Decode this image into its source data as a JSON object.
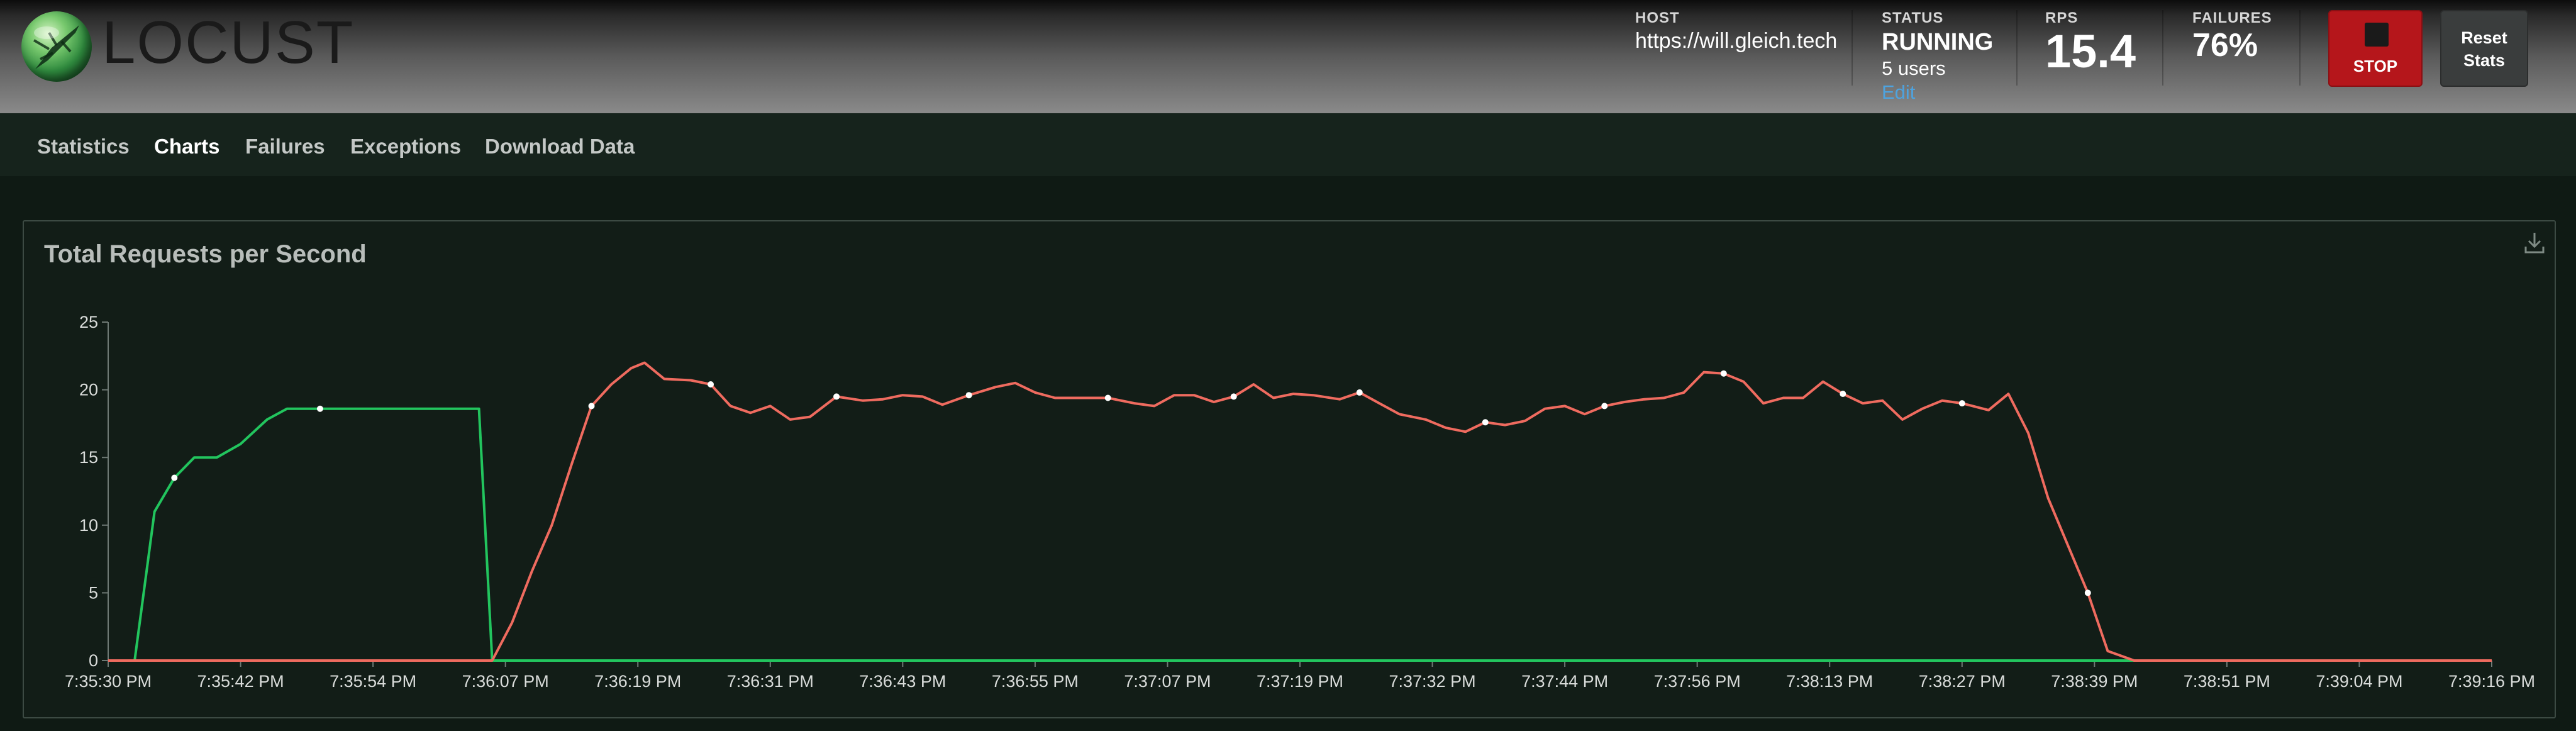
{
  "header": {
    "logo_text": "LOCUST",
    "host": {
      "label": "HOST",
      "value": "https://will.gleich.tech"
    },
    "status": {
      "label": "STATUS",
      "value": "RUNNING",
      "users": "5 users",
      "edit": "Edit"
    },
    "rps": {
      "label": "RPS",
      "value": "15.4"
    },
    "failures": {
      "label": "FAILURES",
      "value": "76%"
    },
    "stop_label": "STOP",
    "reset_line1": "Reset",
    "reset_line2": "Stats"
  },
  "nav": {
    "tabs": [
      {
        "label": "Statistics",
        "active": false
      },
      {
        "label": "Charts",
        "active": true
      },
      {
        "label": "Failures",
        "active": false
      },
      {
        "label": "Exceptions",
        "active": false
      },
      {
        "label": "Download Data",
        "active": false
      }
    ]
  },
  "colors": {
    "rps_series": "#22c55e",
    "failures_series": "#ef6b5f",
    "stop_button": "#b5161b",
    "link": "#4ea3df"
  },
  "chart_data": {
    "type": "line",
    "title": "Total Requests per Second",
    "ylim": [
      0,
      25
    ],
    "y_ticks": [
      0,
      5,
      10,
      15,
      20,
      25
    ],
    "x_tick_labels": [
      "7:35:30 PM",
      "7:35:42 PM",
      "7:35:54 PM",
      "7:36:07 PM",
      "7:36:19 PM",
      "7:36:31 PM",
      "7:36:43 PM",
      "7:36:55 PM",
      "7:37:07 PM",
      "7:37:19 PM",
      "7:37:32 PM",
      "7:37:44 PM",
      "7:37:56 PM",
      "7:38:13 PM",
      "7:38:27 PM",
      "7:38:39 PM",
      "7:38:51 PM",
      "7:39:04 PM",
      "7:39:16 PM"
    ],
    "x_range": [
      0,
      18
    ],
    "grid": false,
    "series": [
      {
        "color": "#22c55e",
        "points": [
          [
            0,
            0
          ],
          [
            0.2,
            0
          ],
          [
            0.35,
            11
          ],
          [
            0.5,
            13.5
          ],
          [
            0.65,
            15
          ],
          [
            0.82,
            15
          ],
          [
            1,
            16
          ],
          [
            1.2,
            17.8
          ],
          [
            1.35,
            18.6
          ],
          [
            1.6,
            18.6
          ],
          [
            2,
            18.6
          ],
          [
            2.5,
            18.6
          ],
          [
            2.8,
            18.6
          ],
          [
            2.9,
            0
          ],
          [
            3,
            0
          ],
          [
            4,
            0
          ],
          [
            5,
            0
          ],
          [
            6,
            0
          ],
          [
            7,
            0
          ],
          [
            8,
            0
          ],
          [
            9,
            0
          ],
          [
            10,
            0
          ],
          [
            11,
            0
          ],
          [
            12,
            0
          ],
          [
            13,
            0
          ],
          [
            14,
            0
          ],
          [
            14.5,
            0
          ],
          [
            14.75,
            0
          ],
          [
            14.95,
            0
          ],
          [
            15.15,
            0
          ],
          [
            15.4,
            0
          ],
          [
            15.6,
            0
          ],
          [
            15.8,
            0
          ],
          [
            16,
            0
          ],
          [
            16.2,
            0
          ],
          [
            16.4,
            0
          ],
          [
            16.6,
            0
          ],
          [
            16.8,
            0
          ],
          [
            17,
            0
          ],
          [
            17.2,
            0
          ],
          [
            17.4,
            0
          ],
          [
            17.6,
            0
          ],
          [
            17.8,
            0
          ],
          [
            18,
            0
          ]
        ]
      },
      {
        "color": "#ef6b5f",
        "points": [
          [
            0,
            0
          ],
          [
            1,
            0
          ],
          [
            2,
            0
          ],
          [
            2.8,
            0
          ],
          [
            2.9,
            0
          ],
          [
            3.05,
            2.8
          ],
          [
            3.2,
            6.6
          ],
          [
            3.35,
            10
          ],
          [
            3.5,
            14.5
          ],
          [
            3.65,
            18.8
          ],
          [
            3.8,
            20.4
          ],
          [
            3.95,
            21.6
          ],
          [
            4.05,
            22
          ],
          [
            4.2,
            20.8
          ],
          [
            4.4,
            20.7
          ],
          [
            4.55,
            20.4
          ],
          [
            4.7,
            18.8
          ],
          [
            4.85,
            18.3
          ],
          [
            5,
            18.8
          ],
          [
            5.15,
            17.8
          ],
          [
            5.3,
            18
          ],
          [
            5.5,
            19.5
          ],
          [
            5.7,
            19.2
          ],
          [
            5.85,
            19.3
          ],
          [
            6,
            19.6
          ],
          [
            6.15,
            19.5
          ],
          [
            6.3,
            18.9
          ],
          [
            6.5,
            19.6
          ],
          [
            6.7,
            20.2
          ],
          [
            6.85,
            20.5
          ],
          [
            7,
            19.8
          ],
          [
            7.15,
            19.4
          ],
          [
            7.4,
            19.4
          ],
          [
            7.55,
            19.4
          ],
          [
            7.75,
            19
          ],
          [
            7.9,
            18.8
          ],
          [
            8.05,
            19.6
          ],
          [
            8.2,
            19.6
          ],
          [
            8.35,
            19.1
          ],
          [
            8.5,
            19.5
          ],
          [
            8.65,
            20.4
          ],
          [
            8.8,
            19.4
          ],
          [
            8.95,
            19.7
          ],
          [
            9.1,
            19.6
          ],
          [
            9.3,
            19.3
          ],
          [
            9.45,
            19.8
          ],
          [
            9.6,
            19
          ],
          [
            9.75,
            18.2
          ],
          [
            9.95,
            17.8
          ],
          [
            10.1,
            17.2
          ],
          [
            10.25,
            16.9
          ],
          [
            10.4,
            17.6
          ],
          [
            10.55,
            17.4
          ],
          [
            10.7,
            17.7
          ],
          [
            10.85,
            18.6
          ],
          [
            11,
            18.8
          ],
          [
            11.15,
            18.2
          ],
          [
            11.3,
            18.8
          ],
          [
            11.45,
            19.1
          ],
          [
            11.6,
            19.3
          ],
          [
            11.75,
            19.4
          ],
          [
            11.9,
            19.8
          ],
          [
            12.05,
            21.3
          ],
          [
            12.2,
            21.2
          ],
          [
            12.35,
            20.6
          ],
          [
            12.5,
            19
          ],
          [
            12.65,
            19.4
          ],
          [
            12.8,
            19.4
          ],
          [
            12.95,
            20.6
          ],
          [
            13.1,
            19.7
          ],
          [
            13.25,
            19
          ],
          [
            13.4,
            19.2
          ],
          [
            13.55,
            17.8
          ],
          [
            13.7,
            18.6
          ],
          [
            13.85,
            19.2
          ],
          [
            14,
            19
          ],
          [
            14.2,
            18.5
          ],
          [
            14.35,
            19.7
          ],
          [
            14.5,
            16.8
          ],
          [
            14.65,
            12
          ],
          [
            14.8,
            8.5
          ],
          [
            14.95,
            5
          ],
          [
            15.1,
            0.7
          ],
          [
            15.3,
            0
          ],
          [
            15.6,
            0
          ],
          [
            16,
            0
          ],
          [
            16.5,
            0
          ],
          [
            17,
            0
          ],
          [
            17.5,
            0
          ],
          [
            18,
            0
          ]
        ]
      }
    ]
  }
}
